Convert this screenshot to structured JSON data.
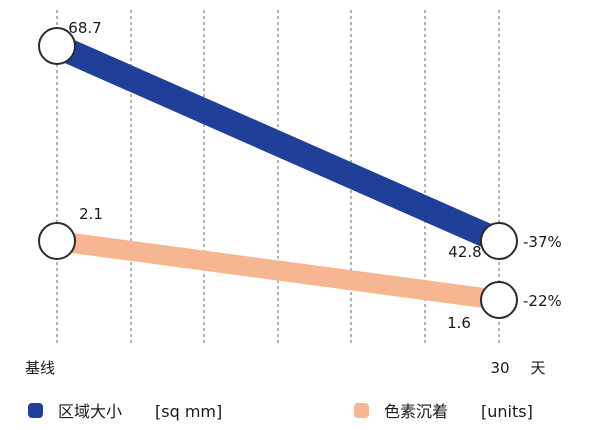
{
  "chart_data": {
    "type": "line",
    "x": [
      "基线",
      "30"
    ],
    "x_unit": "天",
    "grid": true,
    "legend_position": "bottom",
    "series": [
      {
        "name": "区域大小",
        "unit": "[sq mm]",
        "values": [
          68.7,
          42.8
        ],
        "value_labels": [
          "68.7",
          "42.8"
        ],
        "change": "-37%",
        "color": "#1f3f99"
      },
      {
        "name": "色素沉着",
        "unit": "[units]",
        "values": [
          2.1,
          1.6
        ],
        "value_labels": [
          "2.1",
          "1.6"
        ],
        "change": "-22%",
        "color": "#f7b692"
      }
    ]
  }
}
